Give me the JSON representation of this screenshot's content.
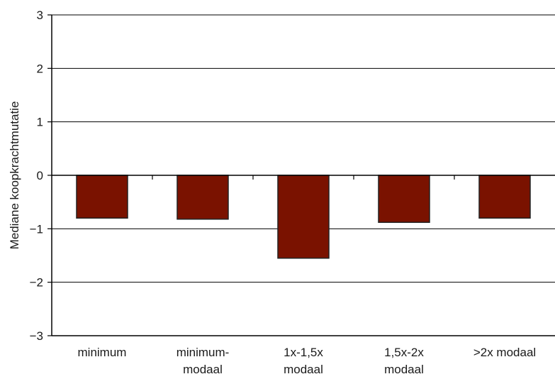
{
  "chart_data": {
    "type": "bar",
    "categories": [
      [
        "minimum"
      ],
      [
        "minimum-",
        "modaal"
      ],
      [
        "1x-1,5x",
        "modaal"
      ],
      [
        "1,5x-2x",
        "modaal"
      ],
      [
        ">2x modaal"
      ]
    ],
    "values": [
      -0.8,
      -0.82,
      -1.55,
      -0.88,
      -0.8
    ],
    "ylabel": "Mediane koopkrachtmutatie",
    "ylim": [
      -3,
      3
    ],
    "yticks": [
      3,
      2,
      1,
      0,
      -1,
      -2,
      -3
    ],
    "ytick_labels": [
      "3",
      "2",
      "1",
      "0",
      "−1",
      "−2",
      "−3"
    ],
    "grid": true,
    "bar_color": "#7a1200",
    "bar_edge_color": "#222222"
  }
}
